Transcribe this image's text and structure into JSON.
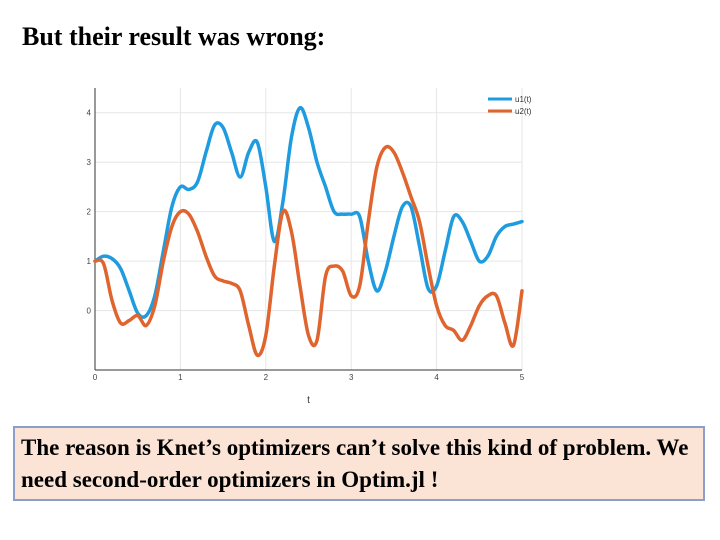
{
  "title": "But their result was wrong:",
  "callout": {
    "text": "The reason is Knet’s optimizers can’t solve this kind of problem. We need second-order optimizers in Optim.jl !"
  },
  "chart_data": {
    "type": "line",
    "xlabel": "t",
    "ylabel": "",
    "xlim": [
      0,
      5
    ],
    "ylim": [
      -1.2,
      4.5
    ],
    "xticks": [
      0,
      1,
      2,
      3,
      4,
      5
    ],
    "yticks": [
      0,
      1,
      2,
      3,
      4
    ],
    "grid": true,
    "legend": "top-right",
    "series": [
      {
        "name": "u1(t)",
        "color": "#1f9be0",
        "x": [
          0,
          0.1,
          0.2,
          0.3,
          0.4,
          0.5,
          0.6,
          0.7,
          0.8,
          0.9,
          1.0,
          1.1,
          1.2,
          1.3,
          1.4,
          1.5,
          1.6,
          1.7,
          1.8,
          1.9,
          2.0,
          2.1,
          2.2,
          2.3,
          2.4,
          2.5,
          2.6,
          2.7,
          2.8,
          2.9,
          3.0,
          3.1,
          3.2,
          3.3,
          3.4,
          3.5,
          3.6,
          3.7,
          3.8,
          3.9,
          4.0,
          4.1,
          4.2,
          4.3,
          4.4,
          4.5,
          4.6,
          4.7,
          4.8,
          4.9,
          5.0
        ],
        "y": [
          1.0,
          1.1,
          1.05,
          0.85,
          0.4,
          -0.05,
          -0.1,
          0.3,
          1.2,
          2.1,
          2.5,
          2.45,
          2.6,
          3.2,
          3.75,
          3.7,
          3.2,
          2.7,
          3.2,
          3.4,
          2.5,
          1.4,
          2.2,
          3.5,
          4.1,
          3.7,
          3.0,
          2.5,
          2.0,
          1.95,
          1.95,
          1.9,
          1.0,
          0.4,
          0.8,
          1.5,
          2.1,
          2.1,
          1.3,
          0.45,
          0.5,
          1.2,
          1.9,
          1.8,
          1.4,
          1.0,
          1.1,
          1.5,
          1.7,
          1.75,
          1.8
        ]
      },
      {
        "name": "u2(t)",
        "color": "#e0642d",
        "x": [
          0,
          0.1,
          0.2,
          0.3,
          0.4,
          0.5,
          0.6,
          0.7,
          0.8,
          0.9,
          1.0,
          1.1,
          1.2,
          1.3,
          1.4,
          1.5,
          1.6,
          1.7,
          1.8,
          1.9,
          2.0,
          2.1,
          2.2,
          2.3,
          2.4,
          2.5,
          2.6,
          2.7,
          2.8,
          2.9,
          3.0,
          3.1,
          3.2,
          3.3,
          3.4,
          3.5,
          3.6,
          3.7,
          3.8,
          3.9,
          4.0,
          4.1,
          4.2,
          4.3,
          4.4,
          4.5,
          4.6,
          4.7,
          4.8,
          4.9,
          5.0
        ],
        "y": [
          1.0,
          0.95,
          0.2,
          -0.25,
          -0.2,
          -0.1,
          -0.3,
          0.1,
          1.0,
          1.7,
          2.0,
          1.95,
          1.6,
          1.1,
          0.7,
          0.6,
          0.55,
          0.4,
          -0.3,
          -0.9,
          -0.5,
          0.9,
          2.0,
          1.6,
          0.5,
          -0.5,
          -0.6,
          0.7,
          0.9,
          0.8,
          0.3,
          0.5,
          1.8,
          2.9,
          3.3,
          3.2,
          2.8,
          2.3,
          1.8,
          0.9,
          0.1,
          -0.3,
          -0.4,
          -0.6,
          -0.3,
          0.1,
          0.3,
          0.3,
          -0.25,
          -0.7,
          0.4
        ]
      }
    ]
  }
}
